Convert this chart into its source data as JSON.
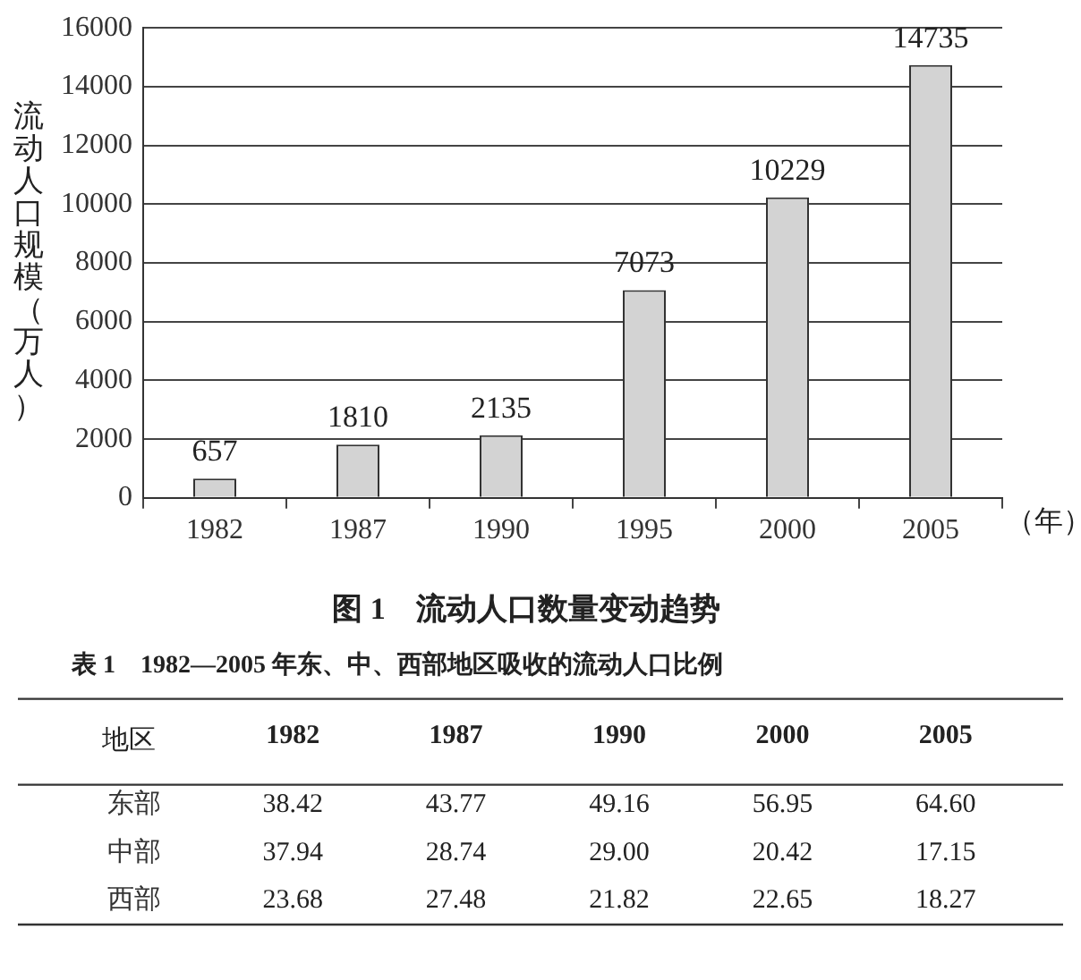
{
  "chart_data": [
    {
      "type": "bar",
      "title": "图 1　流动人口数量变动趋势",
      "xlabel": "（年）",
      "ylabel": "流动人口规模（万人）",
      "categories": [
        "1982",
        "1987",
        "1990",
        "1995",
        "2000",
        "2005"
      ],
      "values": [
        657,
        1810,
        2135,
        7073,
        10229,
        14735
      ],
      "color": "#d3d3d3",
      "ylim": [
        0,
        16000
      ],
      "yticks": [
        0,
        2000,
        4000,
        6000,
        8000,
        10000,
        12000,
        14000,
        16000
      ],
      "grid": "y",
      "data_labels": true
    },
    {
      "type": "heatmap",
      "title": "表 1　1982—2005 年东、中、西部地区吸收的流动人口比例",
      "ylabel": "地区",
      "categories": [
        "1982",
        "1987",
        "1990",
        "2000",
        "2005"
      ],
      "y_categories": [
        "东部",
        "中部",
        "西部"
      ],
      "cells": [
        [
          38.42,
          43.77,
          49.16,
          56.95,
          64.6
        ],
        [
          37.94,
          28.74,
          29.0,
          20.42,
          17.15
        ],
        [
          23.68,
          27.48,
          21.82,
          22.65,
          18.27
        ]
      ],
      "cell_labels": [
        [
          "38.42",
          "43.77",
          "49.16",
          "56.95",
          "64.60"
        ],
        [
          "37.94",
          "28.74",
          "29.00",
          "20.42",
          "17.15"
        ],
        [
          "23.68",
          "27.48",
          "21.82",
          "22.65",
          "18.27"
        ]
      ],
      "data_labels": true
    }
  ]
}
